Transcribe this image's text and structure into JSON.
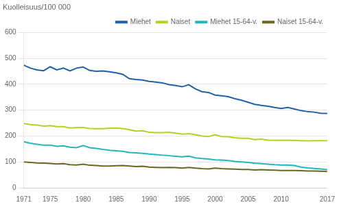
{
  "chart_data": {
    "type": "line",
    "ylabel": "Kuolleisuus/100 000",
    "x": [
      1971,
      1972,
      1973,
      1974,
      1975,
      1976,
      1977,
      1978,
      1979,
      1980,
      1981,
      1982,
      1983,
      1984,
      1985,
      1986,
      1987,
      1988,
      1989,
      1990,
      1991,
      1992,
      1993,
      1994,
      1995,
      1996,
      1997,
      1998,
      1999,
      2000,
      2001,
      2002,
      2003,
      2004,
      2005,
      2006,
      2007,
      2008,
      2009,
      2010,
      2011,
      2012,
      2013,
      2014,
      2015,
      2016,
      2017
    ],
    "series": [
      {
        "name": "Miehet",
        "color": "#2060a8",
        "values": [
          473,
          462,
          455,
          452,
          467,
          455,
          462,
          451,
          462,
          466,
          453,
          450,
          451,
          448,
          444,
          438,
          421,
          418,
          416,
          411,
          408,
          405,
          398,
          395,
          390,
          398,
          382,
          371,
          368,
          358,
          355,
          352,
          344,
          338,
          330,
          322,
          318,
          315,
          310,
          306,
          310,
          304,
          298,
          294,
          292,
          288,
          287
        ]
      },
      {
        "name": "Naiset",
        "color": "#b8d020",
        "values": [
          248,
          244,
          242,
          238,
          240,
          236,
          236,
          231,
          232,
          233,
          229,
          228,
          228,
          230,
          230,
          229,
          224,
          219,
          220,
          214,
          213,
          213,
          214,
          211,
          207,
          209,
          205,
          200,
          198,
          205,
          198,
          197,
          193,
          191,
          191,
          186,
          188,
          184,
          183,
          183,
          183,
          183,
          182,
          181,
          182,
          182,
          182
        ]
      },
      {
        "name": "Miehet 15-64-v.",
        "color": "#20b8b8",
        "values": [
          178,
          172,
          168,
          165,
          165,
          160,
          162,
          157,
          155,
          163,
          155,
          152,
          148,
          145,
          143,
          141,
          136,
          135,
          133,
          130,
          128,
          126,
          124,
          122,
          120,
          122,
          116,
          113,
          111,
          108,
          107,
          105,
          102,
          100,
          98,
          95,
          93,
          91,
          89,
          88,
          88,
          86,
          80,
          77,
          75,
          73,
          70
        ]
      },
      {
        "name": "Naiset 15-64-v.",
        "color": "#686820",
        "values": [
          100,
          98,
          96,
          95,
          94,
          92,
          93,
          89,
          88,
          91,
          87,
          86,
          84,
          84,
          85,
          86,
          84,
          82,
          83,
          80,
          79,
          78,
          79,
          78,
          76,
          79,
          76,
          74,
          73,
          76,
          74,
          73,
          72,
          71,
          71,
          69,
          70,
          69,
          68,
          67,
          67,
          67,
          66,
          65,
          65,
          64,
          63
        ]
      }
    ],
    "xlim": [
      1971,
      2017
    ],
    "xticks": [
      1971,
      1975,
      1980,
      1985,
      1990,
      1995,
      2000,
      2005,
      2010,
      2017
    ],
    "ylim": [
      0,
      600
    ],
    "yticks": [
      0,
      100,
      200,
      300,
      400,
      500,
      600
    ],
    "grid": "y",
    "legend": "upper right"
  }
}
